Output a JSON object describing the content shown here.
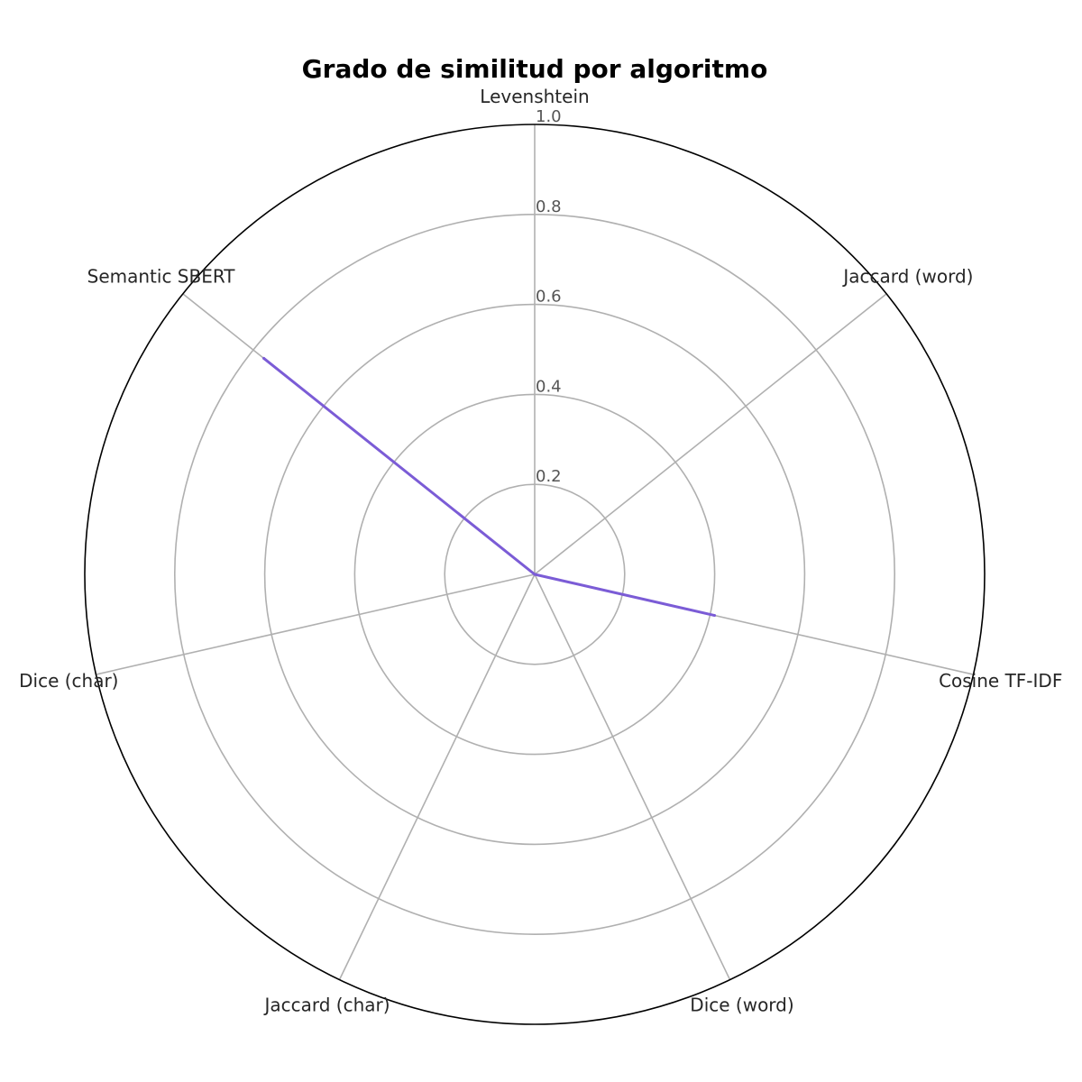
{
  "chart_data": {
    "type": "radar",
    "title": "Grado de similitud por algoritmo",
    "categories": [
      "Levenshtein",
      "Jaccard (word)",
      "Cosine TF-IDF",
      "Dice (word)",
      "Jaccard (char)",
      "Dice (char)",
      "Semantic SBERT"
    ],
    "series": [
      {
        "values": [
          0.0,
          0.0,
          0.41,
          0.0,
          0.0,
          0.0,
          0.77
        ]
      }
    ],
    "rlim": [
      0,
      1.0
    ],
    "r_ticks": [
      0.2,
      0.4,
      0.6,
      0.8,
      1.0
    ],
    "r_tick_labels": [
      "0.2",
      "0.4",
      "0.6",
      "0.8",
      "1.0"
    ],
    "grid": true,
    "colors": {
      "series": "#7b5cd6",
      "grid": "#b0b0b0",
      "frame": "#000000"
    }
  }
}
